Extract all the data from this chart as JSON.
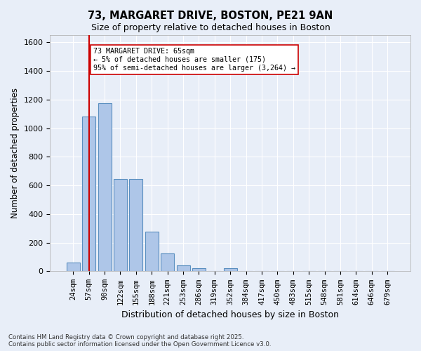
{
  "title_line1": "73, MARGARET DRIVE, BOSTON, PE21 9AN",
  "title_line2": "Size of property relative to detached houses in Boston",
  "xlabel": "Distribution of detached houses by size in Boston",
  "ylabel": "Number of detached properties",
  "categories": [
    "24sqm",
    "57sqm",
    "90sqm",
    "122sqm",
    "155sqm",
    "188sqm",
    "221sqm",
    "253sqm",
    "286sqm",
    "319sqm",
    "352sqm",
    "384sqm",
    "417sqm",
    "450sqm",
    "483sqm",
    "515sqm",
    "548sqm",
    "581sqm",
    "614sqm",
    "646sqm",
    "679sqm"
  ],
  "values": [
    62,
    1080,
    1175,
    645,
    645,
    275,
    125,
    40,
    22,
    0,
    22,
    0,
    0,
    0,
    0,
    0,
    0,
    0,
    0,
    0,
    0
  ],
  "bar_color": "#aec6e8",
  "bar_edge_color": "#5a8fc0",
  "vline_x": 1,
  "vline_color": "#cc0000",
  "annotation_text": "73 MARGARET DRIVE: 65sqm\n← 5% of detached houses are smaller (175)\n95% of semi-detached houses are larger (3,264) →",
  "annotation_box_color": "#ffffff",
  "annotation_box_edge": "#cc0000",
  "ylim": [
    0,
    1650
  ],
  "yticks": [
    0,
    200,
    400,
    600,
    800,
    1000,
    1200,
    1400,
    1600
  ],
  "bg_color": "#e8eef8",
  "grid_color": "#ffffff",
  "footnote": "Contains HM Land Registry data © Crown copyright and database right 2025.\nContains public sector information licensed under the Open Government Licence v3.0."
}
